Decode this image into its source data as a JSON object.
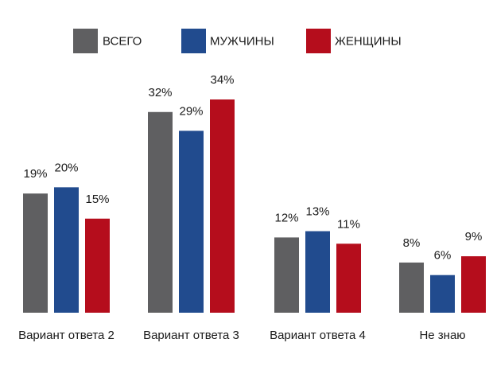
{
  "chart_data": {
    "type": "bar",
    "title": "",
    "xlabel": "",
    "ylabel": "",
    "ylim": [
      0,
      34
    ],
    "grid": false,
    "legend_position": "top",
    "value_suffix": "%",
    "categories": [
      "Вариант ответа 2",
      "Вариант ответа 3",
      "Вариант ответа 4",
      "Не знаю"
    ],
    "series": [
      {
        "name": "ВСЕГО",
        "color": "#5f5f61",
        "values": [
          19,
          32,
          12,
          8
        ],
        "labels": [
          "19%",
          "32%",
          "12%",
          "8%"
        ]
      },
      {
        "name": "МУЖЧИНЫ",
        "color": "#214b8e",
        "values": [
          20,
          29,
          13,
          6
        ],
        "labels": [
          "20%",
          "29%",
          "13%",
          "6%"
        ]
      },
      {
        "name": "ЖЕНЩИНЫ",
        "color": "#b50d1c",
        "values": [
          15,
          34,
          11,
          9
        ],
        "labels": [
          "15%",
          "34%",
          "11%",
          "9%"
        ]
      }
    ]
  }
}
